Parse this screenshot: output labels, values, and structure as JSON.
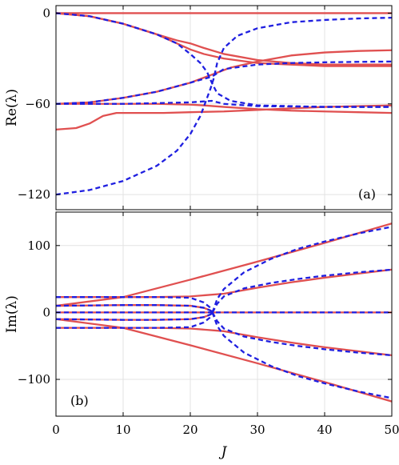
{
  "chart_data": [
    {
      "type": "line",
      "panel_label": "(a)",
      "ylabel": "Re(λ)",
      "xlabel": "",
      "xlim": [
        0,
        50
      ],
      "ylim": [
        -130,
        5
      ],
      "xticks": [
        0,
        10,
        20,
        30,
        40,
        50
      ],
      "xtick_labels": [
        "",
        "",
        "",
        "",
        "",
        ""
      ],
      "yticks": [
        0,
        -60,
        -120
      ],
      "ytick_labels": [
        "0",
        "−60",
        "−120"
      ],
      "grid": true,
      "series": [
        {
          "style": "solid",
          "color": "#e05050",
          "points": [
            [
              0,
              0
            ],
            [
              50,
              0
            ]
          ]
        },
        {
          "style": "solid",
          "color": "#e05050",
          "points": [
            [
              0,
              0
            ],
            [
              5,
              -2
            ],
            [
              10,
              -7
            ],
            [
              15,
              -14
            ],
            [
              18,
              -20
            ],
            [
              20,
              -24
            ],
            [
              22,
              -27
            ],
            [
              25,
              -30
            ],
            [
              30,
              -33
            ],
            [
              35,
              -34
            ],
            [
              40,
              -35
            ],
            [
              45,
              -35
            ],
            [
              50,
              -35
            ]
          ]
        },
        {
          "style": "solid",
          "color": "#e05050",
          "points": [
            [
              0,
              0
            ],
            [
              5,
              -2
            ],
            [
              10,
              -7
            ],
            [
              15,
              -14
            ],
            [
              18,
              -18
            ],
            [
              20,
              -20
            ],
            [
              22,
              -23
            ],
            [
              25,
              -27
            ],
            [
              30,
              -31
            ],
            [
              35,
              -33
            ],
            [
              40,
              -34
            ],
            [
              45,
              -34
            ],
            [
              50,
              -34
            ]
          ]
        },
        {
          "style": "solid",
          "color": "#e05050",
          "points": [
            [
              0,
              -60
            ],
            [
              5,
              -59
            ],
            [
              10,
              -56
            ],
            [
              15,
              -52
            ],
            [
              20,
              -46
            ],
            [
              23,
              -41
            ],
            [
              26,
              -36
            ],
            [
              30,
              -32
            ],
            [
              35,
              -28
            ],
            [
              40,
              -26
            ],
            [
              45,
              -25
            ],
            [
              50,
              -24.5
            ]
          ]
        },
        {
          "style": "solid",
          "color": "#e05050",
          "points": [
            [
              0,
              -60
            ],
            [
              5,
              -60
            ],
            [
              10,
              -60
            ],
            [
              15,
              -60
            ],
            [
              20,
              -60.5
            ],
            [
              22,
              -61
            ],
            [
              25,
              -62
            ],
            [
              30,
              -63.5
            ],
            [
              35,
              -64.5
            ],
            [
              40,
              -65
            ],
            [
              45,
              -65.5
            ],
            [
              50,
              -66
            ]
          ]
        },
        {
          "style": "solid",
          "color": "#e05050",
          "points": [
            [
              0,
              -77
            ],
            [
              3,
              -76
            ],
            [
              5,
              -73
            ],
            [
              7,
              -68
            ],
            [
              9,
              -66
            ],
            [
              12,
              -66
            ],
            [
              16,
              -66
            ],
            [
              20,
              -65.5
            ],
            [
              25,
              -65
            ],
            [
              30,
              -64
            ],
            [
              35,
              -63
            ],
            [
              40,
              -62
            ],
            [
              45,
              -61.5
            ],
            [
              50,
              -61
            ]
          ]
        },
        {
          "style": "dashed",
          "color": "#1f1fe0",
          "points": [
            [
              0,
              0
            ],
            [
              5,
              -2
            ],
            [
              10,
              -7
            ],
            [
              15,
              -14
            ],
            [
              18,
              -20
            ],
            [
              20,
              -27
            ],
            [
              21.5,
              -33
            ],
            [
              22.5,
              -39
            ],
            [
              23.2,
              -46
            ],
            [
              24,
              -53
            ],
            [
              26,
              -58
            ],
            [
              30,
              -61
            ],
            [
              40,
              -62
            ],
            [
              50,
              -62
            ]
          ]
        },
        {
          "style": "dashed",
          "color": "#1f1fe0",
          "points": [
            [
              0,
              -120
            ],
            [
              5,
              -117
            ],
            [
              10,
              -111
            ],
            [
              15,
              -101
            ],
            [
              18,
              -91
            ],
            [
              20,
              -80
            ],
            [
              21.5,
              -68
            ],
            [
              22.5,
              -56
            ],
            [
              23,
              -50
            ],
            [
              23.5,
              -43
            ],
            [
              24,
              -33
            ],
            [
              25,
              -23
            ],
            [
              27,
              -15
            ],
            [
              30,
              -10
            ],
            [
              35,
              -6
            ],
            [
              40,
              -4.5
            ],
            [
              45,
              -3.5
            ],
            [
              50,
              -3
            ]
          ]
        },
        {
          "style": "dashed",
          "color": "#1f1fe0",
          "points": [
            [
              0,
              -60
            ],
            [
              5,
              -59
            ],
            [
              10,
              -56
            ],
            [
              15,
              -52
            ],
            [
              20,
              -46
            ],
            [
              23.2,
              -42
            ],
            [
              25,
              -37
            ],
            [
              30,
              -34
            ],
            [
              35,
              -33
            ],
            [
              40,
              -32.5
            ],
            [
              45,
              -32.2
            ],
            [
              50,
              -32
            ]
          ]
        },
        {
          "style": "dashed",
          "color": "#1f1fe0",
          "points": [
            [
              0,
              -60
            ],
            [
              5,
              -60
            ],
            [
              10,
              -60
            ],
            [
              15,
              -59.5
            ],
            [
              20,
              -59
            ],
            [
              23.2,
              -58
            ],
            [
              25,
              -60
            ],
            [
              30,
              -61.5
            ],
            [
              40,
              -62
            ],
            [
              50,
              -62
            ]
          ]
        }
      ]
    },
    {
      "type": "line",
      "panel_label": "(b)",
      "ylabel": "Im(λ)",
      "xlabel": "J",
      "xlim": [
        0,
        50
      ],
      "ylim": [
        -155,
        150
      ],
      "xticks": [
        0,
        10,
        20,
        30,
        40,
        50
      ],
      "xtick_labels": [
        "0",
        "10",
        "20",
        "30",
        "40",
        "50"
      ],
      "yticks": [
        100,
        0,
        -100
      ],
      "ytick_labels": [
        "100",
        "0",
        "−100"
      ],
      "grid": true,
      "series": [
        {
          "style": "solid",
          "color": "#e05050",
          "points": [
            [
              0,
              0
            ],
            [
              50,
              0
            ]
          ]
        },
        {
          "style": "solid",
          "color": "#e05050",
          "points": [
            [
              0,
              10
            ],
            [
              10,
              23
            ],
            [
              20,
              49
            ],
            [
              30,
              76
            ],
            [
              40,
              104
            ],
            [
              50,
              133
            ]
          ]
        },
        {
          "style": "solid",
          "color": "#e05050",
          "points": [
            [
              0,
              -10
            ],
            [
              10,
              -23
            ],
            [
              20,
              -49
            ],
            [
              30,
              -76
            ],
            [
              40,
              -104
            ],
            [
              50,
              -133
            ]
          ]
        },
        {
          "style": "solid",
          "color": "#e05050",
          "points": [
            [
              0,
              23
            ],
            [
              10,
              23
            ],
            [
              15,
              23
            ],
            [
              20,
              24
            ],
            [
              25,
              28
            ],
            [
              30,
              37
            ],
            [
              35,
              45
            ],
            [
              40,
              52
            ],
            [
              45,
              58
            ],
            [
              50,
              64
            ]
          ]
        },
        {
          "style": "solid",
          "color": "#e05050",
          "points": [
            [
              0,
              -23
            ],
            [
              10,
              -23
            ],
            [
              15,
              -23
            ],
            [
              20,
              -24
            ],
            [
              25,
              -28
            ],
            [
              30,
              -37
            ],
            [
              35,
              -45
            ],
            [
              40,
              -52
            ],
            [
              45,
              -58
            ],
            [
              50,
              -64
            ]
          ]
        },
        {
          "style": "solid",
          "color": "#e05050",
          "points": [
            [
              0,
              10
            ],
            [
              10,
              11
            ],
            [
              15,
              11
            ],
            [
              20,
              10
            ],
            [
              22,
              7
            ],
            [
              23,
              3
            ],
            [
              23.3,
              0
            ]
          ]
        },
        {
          "style": "solid",
          "color": "#e05050",
          "points": [
            [
              0,
              -10
            ],
            [
              10,
              -11
            ],
            [
              15,
              -11
            ],
            [
              20,
              -10
            ],
            [
              22,
              -7
            ],
            [
              23,
              -3
            ],
            [
              23.3,
              0
            ]
          ]
        },
        {
          "style": "dashed",
          "color": "#1f1fe0",
          "points": [
            [
              0,
              0
            ],
            [
              50,
              0
            ]
          ]
        },
        {
          "style": "dashed",
          "color": "#1f1fe0",
          "points": [
            [
              0,
              23
            ],
            [
              10,
              23
            ],
            [
              15,
              23
            ],
            [
              20,
              22
            ],
            [
              22,
              15
            ],
            [
              23,
              7
            ],
            [
              23.3,
              0
            ]
          ]
        },
        {
          "style": "dashed",
          "color": "#1f1fe0",
          "points": [
            [
              0,
              -23
            ],
            [
              10,
              -23
            ],
            [
              15,
              -23
            ],
            [
              20,
              -22
            ],
            [
              22,
              -15
            ],
            [
              23,
              -7
            ],
            [
              23.3,
              0
            ]
          ]
        },
        {
          "style": "dashed",
          "color": "#1f1fe0",
          "points": [
            [
              0,
              10
            ],
            [
              10,
              11
            ],
            [
              15,
              11
            ],
            [
              20,
              10
            ],
            [
              22,
              7
            ],
            [
              23,
              3
            ],
            [
              23.3,
              0
            ]
          ]
        },
        {
          "style": "dashed",
          "color": "#1f1fe0",
          "points": [
            [
              0,
              -10
            ],
            [
              10,
              -11
            ],
            [
              15,
              -11
            ],
            [
              20,
              -10
            ],
            [
              22,
              -7
            ],
            [
              23,
              -3
            ],
            [
              23.3,
              0
            ]
          ]
        },
        {
          "style": "dashed",
          "color": "#1f1fe0",
          "points": [
            [
              23.3,
              0
            ],
            [
              24,
              13
            ],
            [
              25,
              24
            ],
            [
              28,
              36
            ],
            [
              32,
              44
            ],
            [
              36,
              50
            ],
            [
              40,
              55
            ],
            [
              45,
              60
            ],
            [
              50,
              64
            ]
          ]
        },
        {
          "style": "dashed",
          "color": "#1f1fe0",
          "points": [
            [
              23.3,
              0
            ],
            [
              24,
              -13
            ],
            [
              25,
              -24
            ],
            [
              28,
              -36
            ],
            [
              32,
              -44
            ],
            [
              36,
              -50
            ],
            [
              40,
              -55
            ],
            [
              45,
              -60
            ],
            [
              50,
              -64
            ]
          ]
        },
        {
          "style": "dashed",
          "color": "#1f1fe0",
          "points": [
            [
              23.3,
              0
            ],
            [
              24,
              20
            ],
            [
              25,
              35
            ],
            [
              28,
              60
            ],
            [
              32,
              80
            ],
            [
              36,
              95
            ],
            [
              40,
              106
            ],
            [
              45,
              118
            ],
            [
              50,
              128
            ]
          ]
        },
        {
          "style": "dashed",
          "color": "#1f1fe0",
          "points": [
            [
              23.3,
              0
            ],
            [
              24,
              -20
            ],
            [
              25,
              -35
            ],
            [
              28,
              -60
            ],
            [
              32,
              -80
            ],
            [
              36,
              -95
            ],
            [
              40,
              -106
            ],
            [
              45,
              -118
            ],
            [
              50,
              -128
            ]
          ]
        }
      ]
    }
  ]
}
